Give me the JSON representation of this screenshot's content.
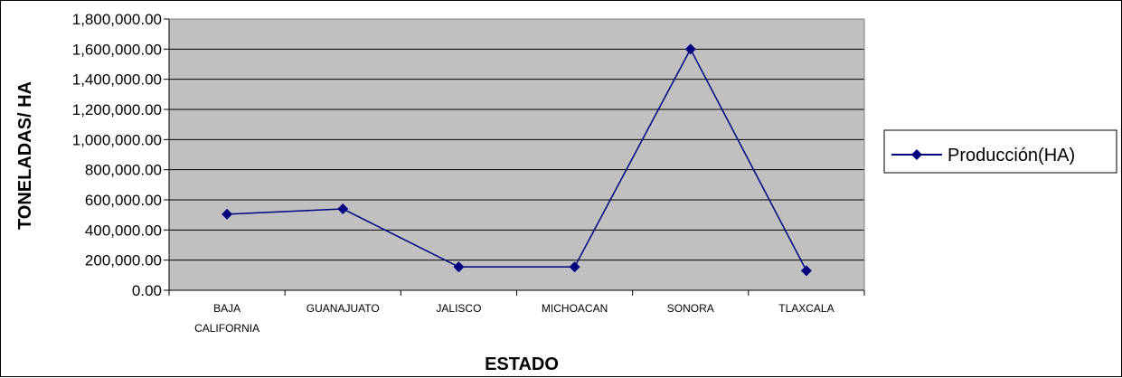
{
  "colors": {
    "plot_background": "#c0c0c0",
    "series_line": "#000080",
    "grid": "#000000"
  },
  "chart_data": {
    "type": "line",
    "title": "",
    "xlabel": "ESTADO",
    "ylabel": "TONELADAS/ HA",
    "categories": [
      "BAJA CALIFORNIA",
      "GUANAJUATO",
      "JALISCO",
      "MICHOACAN",
      "SONORA",
      "TLAXCALA"
    ],
    "category_lines": [
      [
        "BAJA",
        "CALIFORNIA"
      ],
      [
        "GUANAJUATO"
      ],
      [
        "JALISCO"
      ],
      [
        "MICHOACAN"
      ],
      [
        "SONORA"
      ],
      [
        "TLAXCALA"
      ]
    ],
    "series": [
      {
        "name": "Producción(HA)",
        "values": [
          505000,
          540000,
          155000,
          155000,
          1600000,
          130000
        ],
        "marker": "diamond"
      }
    ],
    "ylim": [
      0,
      1800000
    ],
    "yticks": [
      0,
      200000,
      400000,
      600000,
      800000,
      1000000,
      1200000,
      1400000,
      1600000,
      1800000
    ],
    "ytick_labels": [
      "0.00",
      "200,000.00",
      "400,000.00",
      "600,000.00",
      "800,000.00",
      "1,000,000.00",
      "1,200,000.00",
      "1,400,000.00",
      "1,600,000.00",
      "1,800,000.00"
    ],
    "grid": true,
    "legend": "right"
  }
}
